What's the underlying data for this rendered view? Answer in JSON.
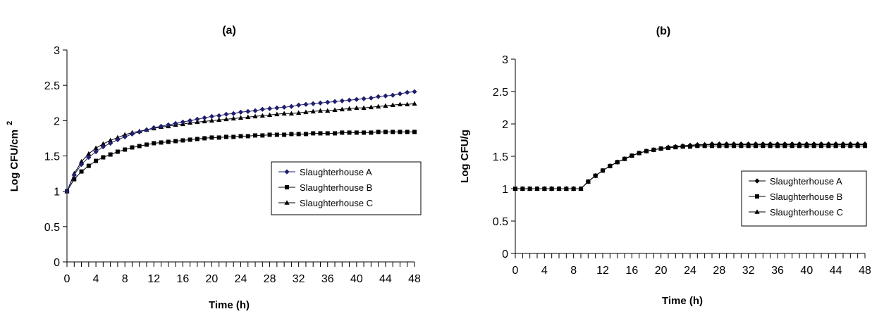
{
  "chart_data": [
    {
      "id": "a",
      "type": "line",
      "title": "(a)",
      "xlabel": "Time (h)",
      "ylabel": "Log CFU/cm",
      "ylabel_superscript": "2",
      "xlim": [
        0,
        48
      ],
      "ylim": [
        0,
        3
      ],
      "x_ticks": [
        "0",
        "4",
        "8",
        "12",
        "16",
        "20",
        "24",
        "28",
        "32",
        "36",
        "40",
        "44",
        "48"
      ],
      "y_ticks": [
        "0",
        "0.5",
        "1",
        "1.5",
        "2",
        "2.5",
        "3"
      ],
      "grid": false,
      "legend_position": "right-middle",
      "x": [
        0,
        1,
        2,
        3,
        4,
        5,
        6,
        7,
        8,
        9,
        10,
        11,
        12,
        13,
        14,
        15,
        16,
        17,
        18,
        19,
        20,
        21,
        22,
        23,
        24,
        25,
        26,
        27,
        28,
        29,
        30,
        31,
        32,
        33,
        34,
        35,
        36,
        37,
        38,
        39,
        40,
        41,
        42,
        43,
        44,
        45,
        46,
        47,
        48
      ],
      "series": [
        {
          "name": "Slaughterhouse A",
          "marker": "diamond",
          "color": "#1f1f6e",
          "values": [
            1.0,
            1.23,
            1.38,
            1.48,
            1.56,
            1.63,
            1.68,
            1.73,
            1.77,
            1.81,
            1.84,
            1.87,
            1.9,
            1.92,
            1.94,
            1.96,
            1.98,
            2.0,
            2.02,
            2.04,
            2.06,
            2.07,
            2.09,
            2.1,
            2.12,
            2.13,
            2.14,
            2.16,
            2.17,
            2.18,
            2.19,
            2.2,
            2.22,
            2.23,
            2.24,
            2.25,
            2.26,
            2.27,
            2.28,
            2.29,
            2.3,
            2.31,
            2.32,
            2.34,
            2.35,
            2.36,
            2.38,
            2.4,
            2.41
          ]
        },
        {
          "name": "Slaughterhouse B",
          "marker": "square",
          "color": "#000000",
          "values": [
            1.0,
            1.17,
            1.28,
            1.36,
            1.43,
            1.48,
            1.52,
            1.56,
            1.59,
            1.62,
            1.64,
            1.66,
            1.68,
            1.69,
            1.7,
            1.71,
            1.72,
            1.73,
            1.74,
            1.75,
            1.76,
            1.76,
            1.77,
            1.77,
            1.78,
            1.78,
            1.79,
            1.79,
            1.8,
            1.8,
            1.8,
            1.81,
            1.81,
            1.81,
            1.82,
            1.82,
            1.82,
            1.82,
            1.83,
            1.83,
            1.83,
            1.83,
            1.83,
            1.84,
            1.84,
            1.84,
            1.84,
            1.84,
            1.84
          ]
        },
        {
          "name": "Slaughterhouse C",
          "marker": "triangle",
          "color": "#000000",
          "values": [
            1.0,
            1.25,
            1.42,
            1.53,
            1.61,
            1.67,
            1.72,
            1.76,
            1.8,
            1.83,
            1.85,
            1.87,
            1.89,
            1.91,
            1.92,
            1.94,
            1.95,
            1.97,
            1.98,
            1.99,
            2.0,
            2.01,
            2.02,
            2.03,
            2.04,
            2.05,
            2.06,
            2.07,
            2.08,
            2.09,
            2.1,
            2.1,
            2.11,
            2.12,
            2.13,
            2.14,
            2.14,
            2.15,
            2.16,
            2.17,
            2.18,
            2.18,
            2.19,
            2.2,
            2.21,
            2.22,
            2.23,
            2.23,
            2.24
          ]
        }
      ]
    },
    {
      "id": "b",
      "type": "line",
      "title": "(b)",
      "xlabel": "Time (h)",
      "ylabel": "Log CFU/g",
      "ylabel_superscript": "",
      "xlim": [
        0,
        48
      ],
      "ylim": [
        0,
        3
      ],
      "x_ticks": [
        "0",
        "4",
        "8",
        "12",
        "16",
        "20",
        "24",
        "28",
        "32",
        "36",
        "40",
        "44",
        "48"
      ],
      "y_ticks": [
        "0",
        "0.5",
        "1",
        "1.5",
        "2",
        "2.5",
        "3"
      ],
      "grid": false,
      "legend_position": "right-middle",
      "x": [
        0,
        1,
        2,
        3,
        4,
        5,
        6,
        7,
        8,
        9,
        10,
        11,
        12,
        13,
        14,
        15,
        16,
        17,
        18,
        19,
        20,
        21,
        22,
        23,
        24,
        25,
        26,
        27,
        28,
        29,
        30,
        31,
        32,
        33,
        34,
        35,
        36,
        37,
        38,
        39,
        40,
        41,
        42,
        43,
        44,
        45,
        46,
        47,
        48
      ],
      "series": [
        {
          "name": "Slaughterhouse A",
          "marker": "diamond",
          "color": "#000000",
          "values": [
            1.0,
            1.0,
            1.0,
            1.0,
            1.0,
            1.0,
            1.0,
            1.0,
            1.0,
            1.0,
            1.11,
            1.2,
            1.28,
            1.35,
            1.41,
            1.46,
            1.51,
            1.55,
            1.58,
            1.6,
            1.62,
            1.64,
            1.65,
            1.66,
            1.67,
            1.68,
            1.68,
            1.69,
            1.69,
            1.69,
            1.69,
            1.69,
            1.69,
            1.69,
            1.69,
            1.69,
            1.69,
            1.69,
            1.69,
            1.69,
            1.69,
            1.69,
            1.69,
            1.69,
            1.69,
            1.69,
            1.69,
            1.69,
            1.69
          ]
        },
        {
          "name": "Slaughterhouse B",
          "marker": "square",
          "color": "#000000",
          "values": [
            1.0,
            1.0,
            1.0,
            1.0,
            1.0,
            1.0,
            1.0,
            1.0,
            1.0,
            1.0,
            1.11,
            1.2,
            1.28,
            1.35,
            1.41,
            1.46,
            1.51,
            1.55,
            1.58,
            1.6,
            1.62,
            1.63,
            1.64,
            1.65,
            1.65,
            1.66,
            1.66,
            1.66,
            1.66,
            1.66,
            1.66,
            1.66,
            1.66,
            1.66,
            1.66,
            1.66,
            1.66,
            1.66,
            1.66,
            1.66,
            1.66,
            1.66,
            1.66,
            1.66,
            1.66,
            1.66,
            1.66,
            1.66,
            1.66
          ]
        },
        {
          "name": "Slaughterhouse C",
          "marker": "triangle",
          "color": "#000000",
          "values": [
            1.0,
            1.0,
            1.0,
            1.0,
            1.0,
            1.0,
            1.0,
            1.0,
            1.0,
            1.0,
            1.11,
            1.2,
            1.28,
            1.35,
            1.41,
            1.46,
            1.51,
            1.55,
            1.58,
            1.6,
            1.62,
            1.64,
            1.65,
            1.66,
            1.67,
            1.67,
            1.68,
            1.68,
            1.68,
            1.68,
            1.68,
            1.68,
            1.68,
            1.68,
            1.68,
            1.68,
            1.68,
            1.68,
            1.68,
            1.68,
            1.68,
            1.68,
            1.68,
            1.68,
            1.68,
            1.68,
            1.68,
            1.68,
            1.68
          ]
        }
      ]
    }
  ]
}
